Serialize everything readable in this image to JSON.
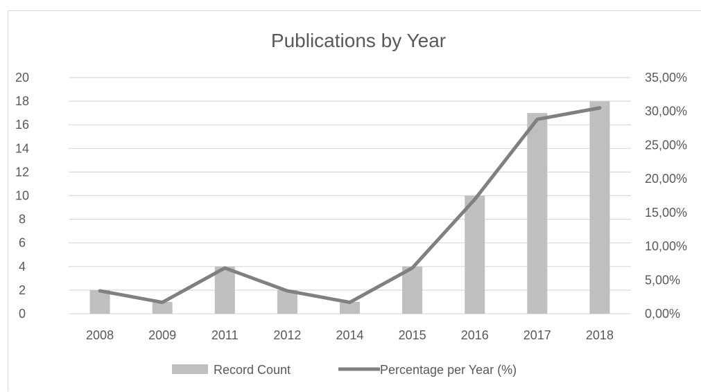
{
  "chart_data": {
    "type": "bar+line",
    "title": "Publications by Year",
    "categories": [
      "2008",
      "2009",
      "2011",
      "2012",
      "2014",
      "2015",
      "2016",
      "2017",
      "2018"
    ],
    "series": [
      {
        "name": "Record Count",
        "type": "bar",
        "axis": "left",
        "values": [
          2,
          1,
          4,
          2,
          1,
          4,
          10,
          17,
          18
        ]
      },
      {
        "name": "Percentage per Year (%)",
        "type": "line",
        "axis": "right",
        "values": [
          3.39,
          1.69,
          6.78,
          3.39,
          1.69,
          6.78,
          16.95,
          28.81,
          30.51
        ]
      }
    ],
    "y_left": {
      "ylim": [
        0,
        20
      ],
      "ticks": [
        "0",
        "2",
        "4",
        "6",
        "8",
        "10",
        "12",
        "14",
        "16",
        "18",
        "20"
      ]
    },
    "y_right": {
      "ylim": [
        0,
        35
      ],
      "ticks": [
        "0,00%",
        "5,00%",
        "10,00%",
        "15,00%",
        "20,00%",
        "25,00%",
        "30,00%",
        "35,00%"
      ]
    },
    "grid": true,
    "legend": "bottom",
    "colors": {
      "bar": "#bfbfbf",
      "line": "#808080",
      "grid": "#d9d9d9",
      "text": "#595959"
    }
  }
}
